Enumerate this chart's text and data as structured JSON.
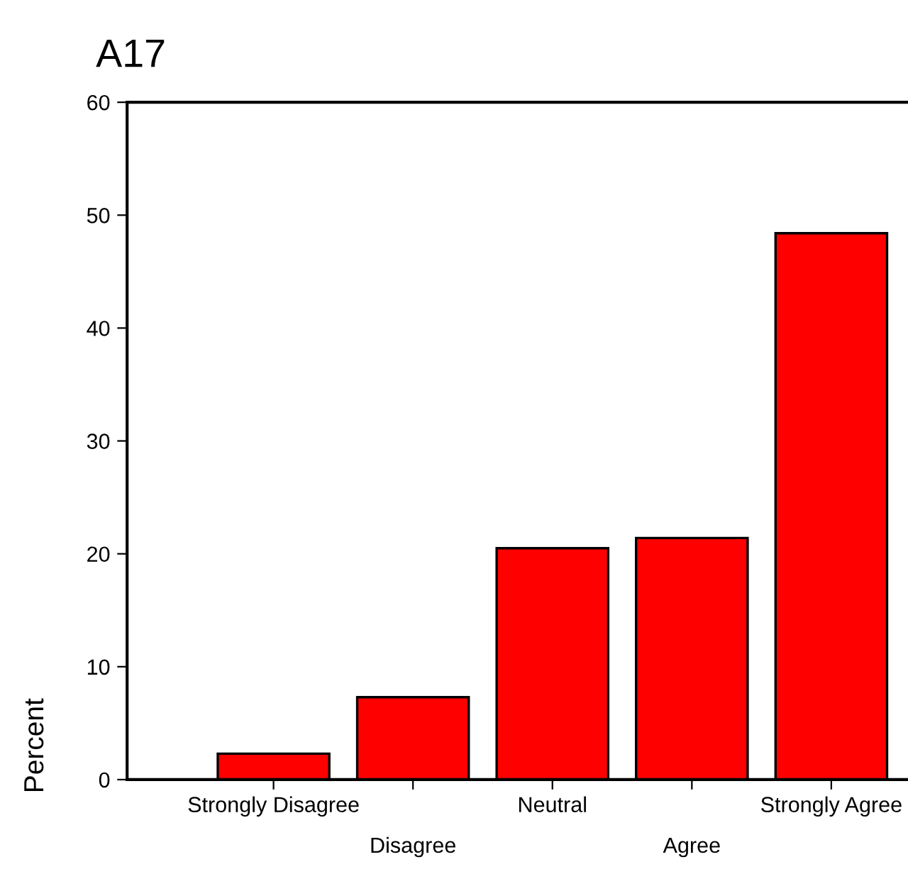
{
  "chart_data": {
    "type": "bar",
    "title": "A17",
    "ylabel": "Percent",
    "categories": [
      "Strongly Disagree",
      "Disagree",
      "Neutral",
      "Agree",
      "Strongly Agree"
    ],
    "values": [
      2.3,
      7.3,
      20.5,
      21.4,
      48.4
    ],
    "color": "#ff0000",
    "ylim": [
      0,
      60
    ],
    "yticks": [
      0,
      10,
      20,
      30,
      40,
      50,
      60
    ],
    "grid": false,
    "legend": false
  }
}
